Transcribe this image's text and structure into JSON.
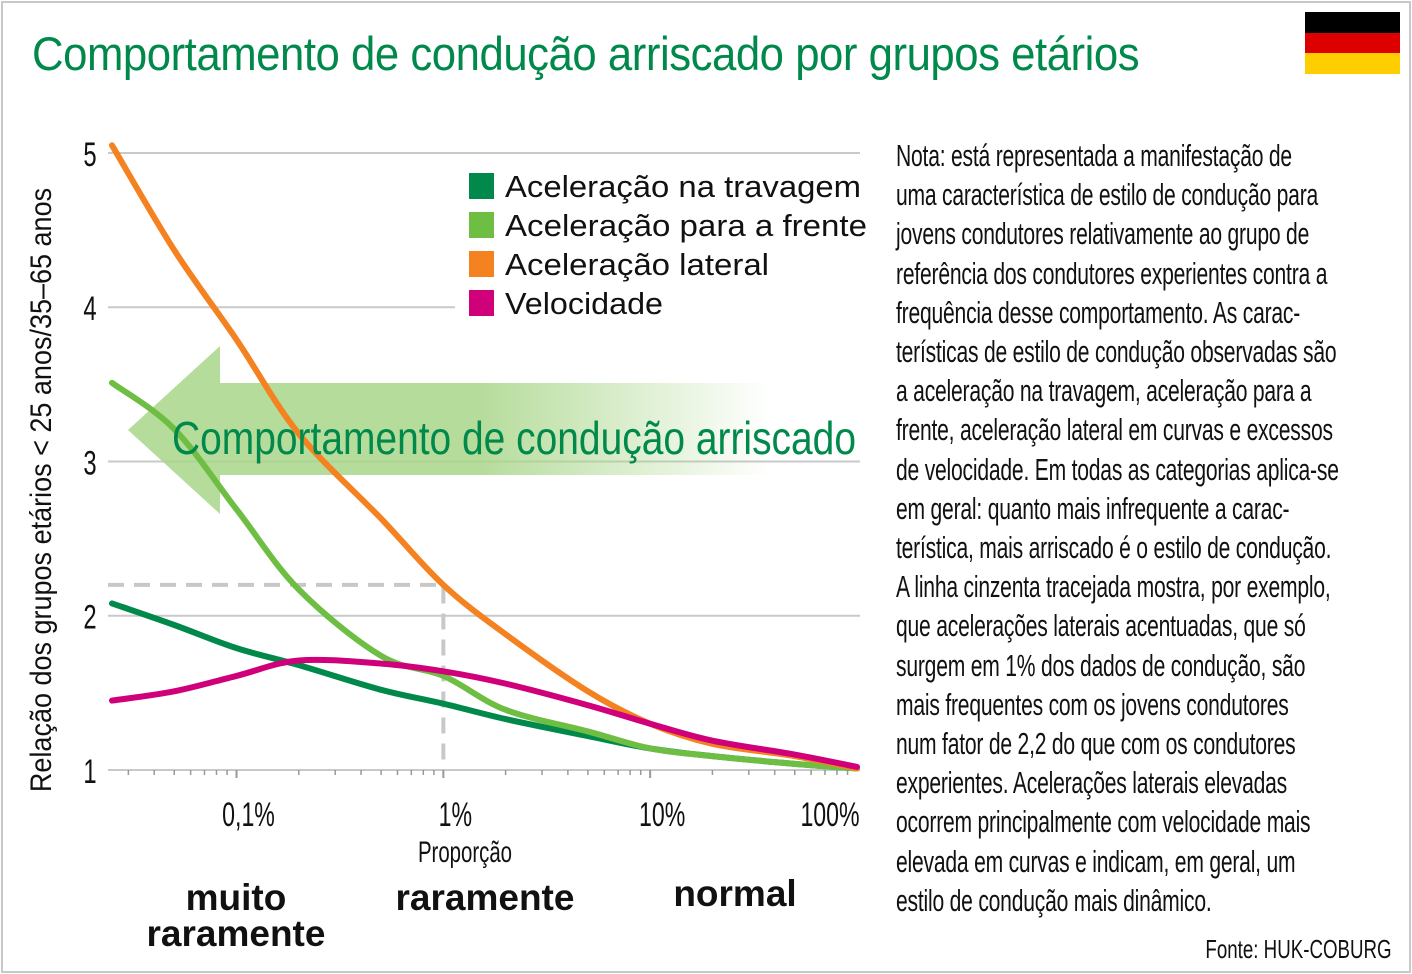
{
  "title": "Comportamento de condução arriscado por grupos etários",
  "flag": {
    "country": "Germany",
    "colors": [
      "#000000",
      "#dd0000",
      "#ffce00"
    ]
  },
  "note_lines": [
    "Nota: está representada a manifestação de",
    "uma característica de estilo de condução para",
    "jovens condutores relativamente ao grupo de",
    "referência dos condutores experientes contra a",
    "frequência desse comportamento. As carac-",
    "terísticas de estilo de condução observadas são",
    "a aceleração na travagem, aceleração para a",
    "frente, aceleração lateral em curvas e excessos",
    "de velocidade. Em todas as categorias aplica-se",
    "em geral: quanto mais infrequente a carac-",
    "terística, mais arriscado é o estilo de condução.",
    "A linha cinzenta tracejada mostra, por exemplo,",
    "que acelerações laterais acentuadas, que só",
    "surgem em 1% dos dados de condução, são",
    "mais frequentes com os jovens condutores",
    "num fator de 2,2 do que com os condutores",
    "experientes. Acelerações laterais elevadas",
    "ocorrem principalmente com velocidade mais",
    "elevada em curvas e indicam, em geral, um",
    "estilo de condução mais dinâmico."
  ],
  "source": "Fonte: HUK-COBURG",
  "arrow_label": "Comportamento de condução arriscado",
  "categories": {
    "muito_raramente": [
      "muito",
      "raramente"
    ],
    "raramente": "raramente",
    "normal": "normal"
  },
  "chart_data": {
    "type": "line",
    "xlabel": "Proporção",
    "ylabel": "Relação dos grupos etários < 25 anos/35–65 anos",
    "x_scale": "log",
    "x_unit": "%",
    "xlim": [
      0.025,
      100
    ],
    "ylim": [
      1,
      5
    ],
    "x_ticks": [
      0.1,
      1,
      10,
      100
    ],
    "x_tick_labels": [
      "0,1%",
      "1%",
      "10%",
      "100%"
    ],
    "y_ticks": [
      1,
      2,
      3,
      4,
      5
    ],
    "y_tick_labels": [
      "1",
      "2",
      "3",
      "4",
      "5"
    ],
    "grid": "horizontal",
    "legend_position": "top-right",
    "x": [
      0.025,
      0.05,
      0.1,
      0.2,
      0.5,
      1,
      2,
      5,
      10,
      20,
      50,
      100
    ],
    "series": [
      {
        "name": "Aceleração na travagem",
        "color": "#00894b",
        "values": [
          2.08,
          1.94,
          1.79,
          1.68,
          1.52,
          1.43,
          1.33,
          1.22,
          1.14,
          1.09,
          1.04,
          1.01
        ]
      },
      {
        "name": "Aceleração para a frente",
        "color": "#6fbe44",
        "values": [
          3.51,
          3.21,
          2.69,
          2.17,
          1.74,
          1.61,
          1.39,
          1.25,
          1.14,
          1.09,
          1.04,
          1.01
        ]
      },
      {
        "name": "Aceleração lateral",
        "color": "#f58220",
        "values": [
          5.05,
          4.37,
          3.79,
          3.18,
          2.63,
          2.2,
          1.88,
          1.51,
          1.3,
          1.17,
          1.09,
          1.01
        ]
      },
      {
        "name": "Velocidade",
        "color": "#d0007b",
        "values": [
          1.45,
          1.51,
          1.61,
          1.71,
          1.69,
          1.64,
          1.56,
          1.42,
          1.3,
          1.19,
          1.1,
          1.02
        ]
      }
    ],
    "reference": {
      "x": 1,
      "y": 2.2,
      "color": "#c8c8c8",
      "style": "dashed"
    }
  }
}
